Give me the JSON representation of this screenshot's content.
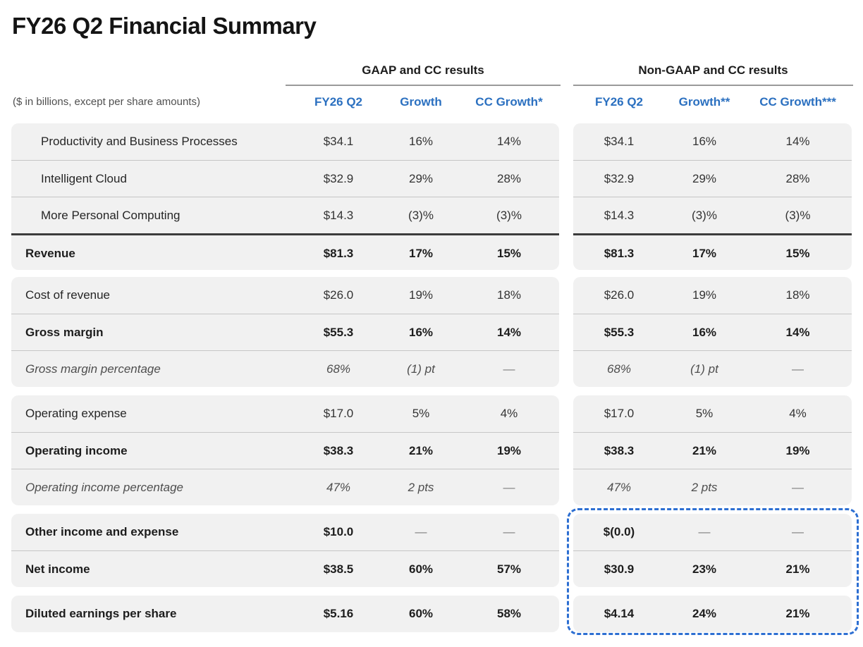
{
  "title": "FY26 Q2 Financial Summary",
  "subtitle": "($ in billions, except per share amounts)",
  "groups": {
    "gaap": {
      "label": "GAAP and CC results",
      "columns": [
        "FY26 Q2",
        "Growth",
        "CC Growth*"
      ]
    },
    "non_gaap": {
      "label": "Non-GAAP and CC results",
      "columns": [
        "FY26 Q2",
        "Growth**",
        "CC Growth***"
      ]
    }
  },
  "colors": {
    "column_header_blue": "#2b70c0",
    "highlight_border_blue": "#2d6fd2",
    "row_background": "#f1f1f1"
  },
  "bands": [
    {
      "rows": [
        {
          "label": "Productivity and Business Processes",
          "style": "segment",
          "gaap": [
            "$34.1",
            "16%",
            "14%"
          ],
          "non_gaap": [
            "$34.1",
            "16%",
            "14%"
          ]
        },
        {
          "label": "Intelligent Cloud",
          "style": "segment",
          "gaap": [
            "$32.9",
            "29%",
            "28%"
          ],
          "non_gaap": [
            "$32.9",
            "29%",
            "28%"
          ]
        },
        {
          "label": "More Personal Computing",
          "style": "segment",
          "gaap": [
            "$14.3",
            "(3)%",
            "(3)%"
          ],
          "non_gaap": [
            "$14.3",
            "(3)%",
            "(3)%"
          ]
        },
        {
          "label": "Revenue",
          "style": "total",
          "gaap": [
            "$81.3",
            "17%",
            "15%"
          ],
          "non_gaap": [
            "$81.3",
            "17%",
            "15%"
          ]
        }
      ]
    },
    {
      "rows": [
        {
          "label": "Cost of revenue",
          "style": "normal",
          "gaap": [
            "$26.0",
            "19%",
            "18%"
          ],
          "non_gaap": [
            "$26.0",
            "19%",
            "18%"
          ]
        },
        {
          "label": "Gross margin",
          "style": "bold",
          "gaap": [
            "$55.3",
            "16%",
            "14%"
          ],
          "non_gaap": [
            "$55.3",
            "16%",
            "14%"
          ]
        },
        {
          "label": "Gross margin percentage",
          "style": "italic",
          "gaap": [
            "68%",
            "(1) pt",
            "—"
          ],
          "non_gaap": [
            "68%",
            "(1) pt",
            "—"
          ]
        }
      ]
    },
    {
      "rows": [
        {
          "label": "Operating expense",
          "style": "normal",
          "gaap": [
            "$17.0",
            "5%",
            "4%"
          ],
          "non_gaap": [
            "$17.0",
            "5%",
            "4%"
          ]
        },
        {
          "label": "Operating income",
          "style": "bold",
          "gaap": [
            "$38.3",
            "21%",
            "19%"
          ],
          "non_gaap": [
            "$38.3",
            "21%",
            "19%"
          ]
        },
        {
          "label": "Operating income percentage",
          "style": "italic",
          "gaap": [
            "47%",
            "2 pts",
            "—"
          ],
          "non_gaap": [
            "47%",
            "2 pts",
            "—"
          ]
        }
      ]
    },
    {
      "rows": [
        {
          "label": "Other income and expense",
          "style": "bold",
          "gaap": [
            "$10.0",
            "—",
            "—"
          ],
          "non_gaap": [
            "$(0.0)",
            "—",
            "—"
          ]
        },
        {
          "label": "Net income",
          "style": "bold",
          "gaap": [
            "$38.5",
            "60%",
            "57%"
          ],
          "non_gaap": [
            "$30.9",
            "23%",
            "21%"
          ]
        }
      ]
    },
    {
      "rows": [
        {
          "label": "Diluted earnings per share",
          "style": "bold",
          "gaap": [
            "$5.16",
            "60%",
            "58%"
          ],
          "non_gaap": [
            "$4.14",
            "24%",
            "21%"
          ]
        }
      ]
    }
  ]
}
